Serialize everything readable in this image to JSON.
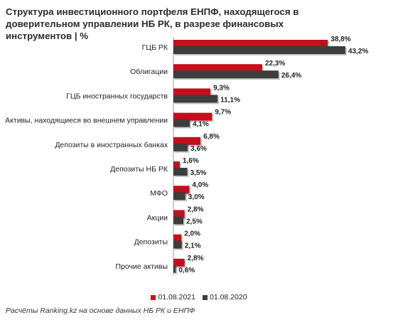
{
  "title": "Структура инвестиционного портфеля ЕНПФ, находящегося в доверительном управлении НБ РК, в разрезе финансовых инструментов | %",
  "source": "Расчёты Ranking.kz на основе данных НБ РК и ЕНПФ",
  "colors": {
    "series_2021": "#c3101c",
    "series_2020": "#3d3d3d",
    "axis": "#9a9a9a"
  },
  "chart_data": {
    "type": "bar",
    "orientation": "horizontal",
    "categories": [
      "ГЦБ РК",
      "Облигации",
      "ГЦБ иностранных государств",
      "Активы, находящиеся во внешнем управлении",
      "Депозиты в иностранных банках",
      "Депозиты НБ РК",
      "МФО",
      "Акции",
      "Депозиты",
      "Прочие активы"
    ],
    "series": [
      {
        "name": "01.08.2021",
        "values": [
          38.8,
          22.3,
          9.3,
          9.7,
          6.8,
          1.6,
          4.0,
          2.8,
          2.0,
          2.8
        ],
        "labels": [
          "38,8%",
          "22,3%",
          "9,3%",
          "9,7%",
          "6,8%",
          "1,6%",
          "4,0%",
          "2,8%",
          "2,0%",
          "2,8%"
        ]
      },
      {
        "name": "01.08.2020",
        "values": [
          43.2,
          26.4,
          11.1,
          4.1,
          3.6,
          3.5,
          3.0,
          2.5,
          2.1,
          0.6
        ],
        "labels": [
          "43,2%",
          "26,4%",
          "11,1%",
          "4,1%",
          "3,6%",
          "3,5%",
          "3,0%",
          "2,5%",
          "2,1%",
          "0,6%"
        ]
      }
    ],
    "xlim": [
      0,
      45
    ],
    "grid": false,
    "legend_position": "bottom-center"
  }
}
